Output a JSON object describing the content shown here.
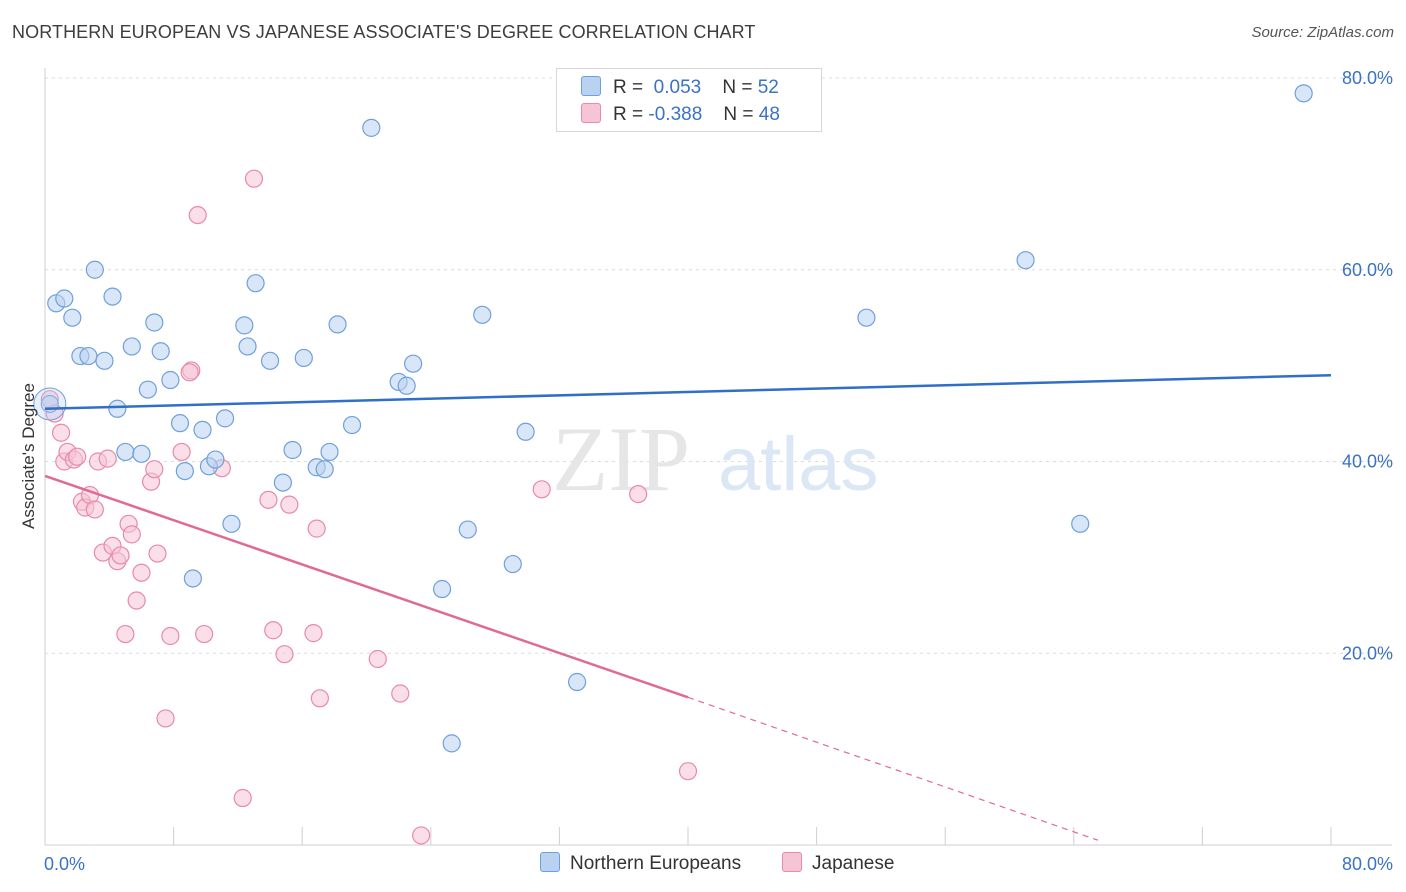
{
  "title": "NORTHERN EUROPEAN VS JAPANESE ASSOCIATE'S DEGREE CORRELATION CHART",
  "source": "Source: ZipAtlas.com",
  "watermark": {
    "zip": "ZIP",
    "atlas": "atlas"
  },
  "legend": {
    "rows": [
      {
        "r_label": "R =",
        "r_value": "0.053",
        "n_label": "N =",
        "n_value": "52"
      },
      {
        "r_label": "R =",
        "r_value": "-0.388",
        "n_label": "N =",
        "n_value": "48"
      }
    ]
  },
  "colors": {
    "blue_fill": "#b9d2f0",
    "blue_stroke": "#6fa0dc",
    "blue_line": "#2f6fc7",
    "pink_fill": "#f6c5d5",
    "pink_stroke": "#e88aa8",
    "pink_line": "#e06a95",
    "axis_label": "#3a72c4"
  },
  "chart_data": {
    "type": "scatter",
    "title": "NORTHERN EUROPEAN VS JAPANESE ASSOCIATE'S DEGREE CORRELATION CHART",
    "xlabel": "",
    "ylabel": "Associate's Degree",
    "xlim": [
      0,
      80
    ],
    "ylim": [
      0,
      80
    ],
    "x_tick_labels": [
      "0.0%",
      "80.0%"
    ],
    "y_ticks": [
      20,
      40,
      60,
      80
    ],
    "y_tick_labels": [
      "20.0%",
      "40.0%",
      "60.0%",
      "80.0%"
    ],
    "grid": true,
    "legend_position": "top-center",
    "series": [
      {
        "name": "Northern Europeans",
        "color": "#6fa0dc",
        "trend": {
          "x": [
            0,
            80
          ],
          "y": [
            45.5,
            49.0
          ],
          "dashed_from": null
        },
        "points": [
          [
            0.3,
            46.0
          ],
          [
            0.7,
            56.5
          ],
          [
            1.2,
            57.0
          ],
          [
            1.7,
            55.0
          ],
          [
            2.2,
            51.0
          ],
          [
            2.7,
            51.0
          ],
          [
            3.1,
            60.0
          ],
          [
            3.7,
            50.5
          ],
          [
            4.2,
            57.2
          ],
          [
            4.5,
            45.5
          ],
          [
            5.0,
            41.0
          ],
          [
            5.4,
            52.0
          ],
          [
            6.0,
            40.8
          ],
          [
            6.4,
            47.5
          ],
          [
            6.8,
            54.5
          ],
          [
            7.2,
            51.5
          ],
          [
            7.8,
            48.5
          ],
          [
            8.4,
            44.0
          ],
          [
            8.7,
            39.0
          ],
          [
            9.2,
            27.8
          ],
          [
            9.8,
            43.3
          ],
          [
            10.2,
            39.5
          ],
          [
            10.6,
            40.2
          ],
          [
            11.2,
            44.5
          ],
          [
            11.6,
            33.5
          ],
          [
            12.4,
            54.2
          ],
          [
            12.6,
            52.0
          ],
          [
            13.1,
            58.6
          ],
          [
            14.0,
            50.5
          ],
          [
            14.8,
            37.8
          ],
          [
            15.4,
            41.2
          ],
          [
            16.1,
            50.8
          ],
          [
            16.9,
            39.4
          ],
          [
            17.4,
            39.2
          ],
          [
            17.7,
            41.0
          ],
          [
            18.2,
            54.3
          ],
          [
            19.1,
            43.8
          ],
          [
            20.3,
            74.8
          ],
          [
            22.0,
            48.3
          ],
          [
            22.5,
            47.9
          ],
          [
            22.9,
            50.2
          ],
          [
            24.7,
            26.7
          ],
          [
            25.3,
            10.6
          ],
          [
            26.3,
            32.9
          ],
          [
            27.2,
            55.3
          ],
          [
            29.1,
            29.3
          ],
          [
            29.9,
            43.1
          ],
          [
            33.1,
            17.0
          ],
          [
            51.1,
            55.0
          ],
          [
            61.0,
            61.0
          ],
          [
            64.4,
            33.5
          ],
          [
            78.3,
            78.4
          ]
        ]
      },
      {
        "name": "Japanese",
        "color": "#e88aa8",
        "trend": {
          "x": [
            0,
            40
          ],
          "y": [
            38.5,
            15.4
          ],
          "dashed_to": [
            65.5,
            0.5
          ]
        },
        "points": [
          [
            0.3,
            46.5
          ],
          [
            0.6,
            45.0
          ],
          [
            1.0,
            43.0
          ],
          [
            1.2,
            40.0
          ],
          [
            1.4,
            41.0
          ],
          [
            1.8,
            40.2
          ],
          [
            2.3,
            35.8
          ],
          [
            2.5,
            35.2
          ],
          [
            2.8,
            36.5
          ],
          [
            3.1,
            35.0
          ],
          [
            3.3,
            40.0
          ],
          [
            3.6,
            30.5
          ],
          [
            3.9,
            40.3
          ],
          [
            4.2,
            31.2
          ],
          [
            4.5,
            29.6
          ],
          [
            4.7,
            30.2
          ],
          [
            5.0,
            22.0
          ],
          [
            5.2,
            33.5
          ],
          [
            5.4,
            32.4
          ],
          [
            5.7,
            25.5
          ],
          [
            6.0,
            28.4
          ],
          [
            6.6,
            37.9
          ],
          [
            6.8,
            39.2
          ],
          [
            7.0,
            30.4
          ],
          [
            7.5,
            13.2
          ],
          [
            7.8,
            21.8
          ],
          [
            8.5,
            41.0
          ],
          [
            9.1,
            49.5
          ],
          [
            9.5,
            65.7
          ],
          [
            9.9,
            22.0
          ],
          [
            11.0,
            39.3
          ],
          [
            12.3,
            4.9
          ],
          [
            13.0,
            69.5
          ],
          [
            13.9,
            36.0
          ],
          [
            14.2,
            22.4
          ],
          [
            14.9,
            19.9
          ],
          [
            15.2,
            35.5
          ],
          [
            16.7,
            22.1
          ],
          [
            16.9,
            33.0
          ],
          [
            17.1,
            15.3
          ],
          [
            20.7,
            19.4
          ],
          [
            22.1,
            15.8
          ],
          [
            23.4,
            1.0
          ],
          [
            30.9,
            37.1
          ],
          [
            36.9,
            36.6
          ],
          [
            40.0,
            7.7
          ],
          [
            2.0,
            40.5
          ],
          [
            9.0,
            49.3
          ]
        ]
      }
    ]
  },
  "bottom_legend": [
    {
      "label": "Northern Europeans"
    },
    {
      "label": "Japanese"
    }
  ]
}
